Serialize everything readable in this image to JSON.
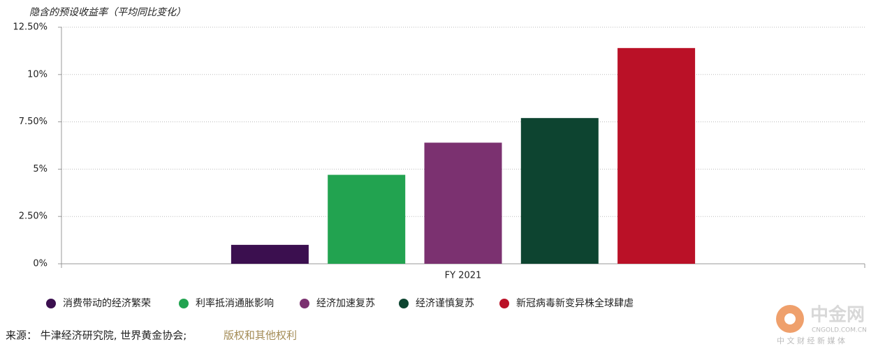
{
  "chart_data": {
    "type": "bar",
    "title": "隐含的预设收益率（平均同比变化）",
    "categories": [
      "FY 2021"
    ],
    "series": [
      {
        "name": "消费带动的经济繁荣",
        "color": "#3b0f4f",
        "values": [
          1.0
        ]
      },
      {
        "name": "利率抵消通胀影响",
        "color": "#22a350",
        "values": [
          4.7
        ]
      },
      {
        "name": "经济加速复苏",
        "color": "#7b3170",
        "values": [
          6.4
        ]
      },
      {
        "name": "经济谨慎复苏",
        "color": "#0d4430",
        "values": [
          7.7
        ]
      },
      {
        "name": "新冠病毒新变异株全球肆虐",
        "color": "#ba1127",
        "values": [
          11.4
        ]
      }
    ],
    "ylim": [
      0,
      12.5
    ],
    "yticks": [
      {
        "value": 0,
        "label": "0%"
      },
      {
        "value": 2.5,
        "label": "2.50%"
      },
      {
        "value": 5,
        "label": "5%"
      },
      {
        "value": 7.5,
        "label": "7.50%"
      },
      {
        "value": 10,
        "label": "10%"
      },
      {
        "value": 12.5,
        "label": "12.50%"
      }
    ],
    "grid": true,
    "legend": "bottom",
    "source": "来源： 牛津经济研究院, 世界黄金协会; ",
    "source_link": "版权和其他权利"
  },
  "watermark": {
    "name": "中金网",
    "domain": "CNGOLD.COM.CN",
    "tagline": "中 文 财 经 新 媒 体"
  }
}
